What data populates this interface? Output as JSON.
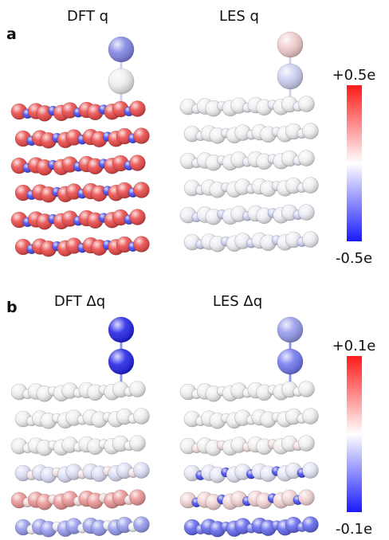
{
  "panels": [
    {
      "label": "a",
      "titles": [
        "DFT q",
        "LES q"
      ],
      "colorbar": {
        "max_label": "+0.5e",
        "min_label": "-0.5e",
        "max_color": "#ff1a1a",
        "mid_color": "#ffffff",
        "min_color": "#1a1aff"
      }
    },
    {
      "label": "b",
      "titles": [
        "DFT Δq",
        "LES Δq"
      ],
      "colorbar": {
        "max_label": "+0.1e",
        "min_label": "-0.1e",
        "max_color": "#ff1a1a",
        "mid_color": "#ffffff",
        "min_color": "#1a1aff"
      }
    }
  ],
  "palette": {
    "red": "#e8403f",
    "blue": "#3b3ff0",
    "white": "#e8e8e8",
    "light_blue": "#c8cdf0",
    "pink": "#f0c8c8"
  }
}
